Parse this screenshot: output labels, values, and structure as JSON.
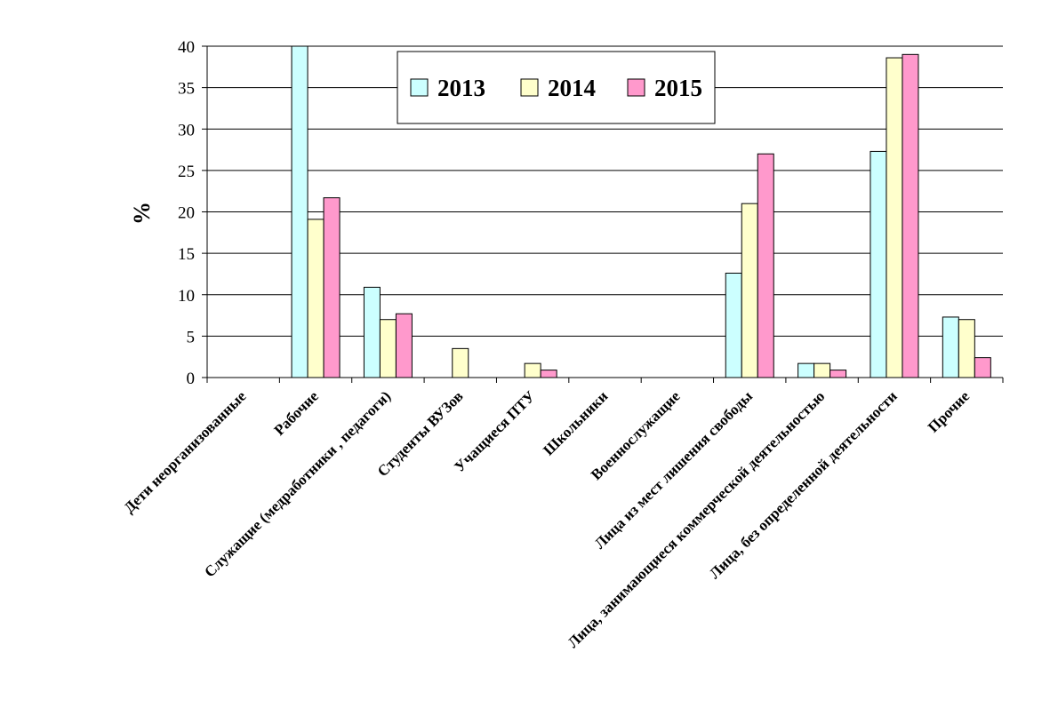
{
  "chart_data": {
    "type": "bar",
    "ylabel": "%",
    "ylim": [
      0,
      40
    ],
    "yticks": [
      0,
      5,
      10,
      15,
      20,
      25,
      30,
      35,
      40
    ],
    "grid": true,
    "legend_position": "top-center",
    "categories": [
      "Дети неорганизованные",
      "Рабочие",
      "Служащие (медработники , педагоги)",
      "Студенты ВУЗов",
      "Учащиеся ПТУ",
      "Школьники",
      "Военнослужащие",
      "Лица из мест лишения свободы",
      "Лица, занимающиеся коммерческой деятельностью",
      "Лица, без определенной деятельности",
      "Прочие"
    ],
    "series": [
      {
        "name": "2013",
        "color": "#ccffff",
        "values": [
          0,
          40,
          10.9,
          0,
          0,
          0,
          0,
          12.6,
          1.7,
          27.3,
          7.3
        ]
      },
      {
        "name": "2014",
        "color": "#ffffcc",
        "values": [
          0,
          19.1,
          7.0,
          3.5,
          1.7,
          0,
          0,
          21.0,
          1.7,
          38.6,
          7.0
        ]
      },
      {
        "name": "2015",
        "color": "#ff99cc",
        "values": [
          0,
          21.7,
          7.7,
          0,
          0.9,
          0,
          0,
          27.0,
          0.9,
          39.0,
          2.4
        ]
      }
    ]
  }
}
